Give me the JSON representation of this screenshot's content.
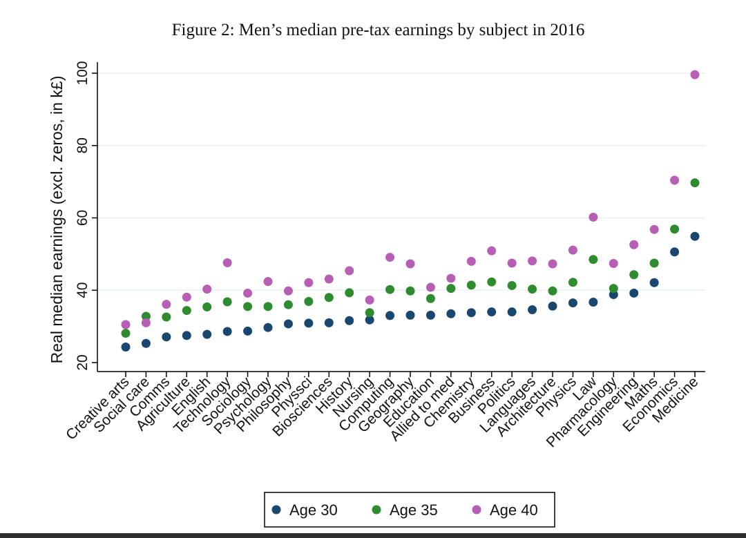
{
  "chart_data": {
    "type": "scatter",
    "title": "Figure 2: Men’s median pre-tax earnings by subject in 2016",
    "xlabel": "",
    "ylabel": "Real median earnings (excl. zeros, in k£)",
    "ylim": [
      20,
      100
    ],
    "yticks": [
      "20",
      "40",
      "60",
      "80",
      "100"
    ],
    "grid": true,
    "legend_position": "bottom",
    "categories": [
      "Creative arts",
      "Social care",
      "Comms",
      "Agriculture",
      "English",
      "Technology",
      "Sociology",
      "Psychology",
      "Philosophy",
      "Physsci",
      "Biosciences",
      "History",
      "Nursing",
      "Computing",
      "Geography",
      "Education",
      "Allied to med",
      "Chemistry",
      "Business",
      "Politics",
      "Languages",
      "Architecture",
      "Physics",
      "Law",
      "Pharmacology",
      "Engineering",
      "Maths",
      "Economics",
      "Medicine"
    ],
    "series": [
      {
        "name": "Age 30",
        "color": "#1a476f",
        "values": [
          24.3,
          25.3,
          27.1,
          27.5,
          27.8,
          28.6,
          28.7,
          29.7,
          30.7,
          30.9,
          31.0,
          31.6,
          31.8,
          33.0,
          33.1,
          33.1,
          33.5,
          33.8,
          34.0,
          34.0,
          34.6,
          35.6,
          36.5,
          36.7,
          38.8,
          39.2,
          42.1,
          50.6,
          54.9
        ]
      },
      {
        "name": "Age 35",
        "color": "#2e8b2e",
        "values": [
          28.1,
          32.8,
          32.6,
          34.4,
          35.4,
          36.8,
          35.5,
          35.5,
          36.0,
          36.9,
          38.0,
          39.3,
          33.8,
          40.2,
          39.8,
          37.7,
          40.5,
          41.4,
          42.3,
          41.3,
          40.3,
          39.8,
          42.2,
          48.5,
          40.5,
          44.3,
          47.5,
          56.9,
          69.7
        ]
      },
      {
        "name": "Age 40",
        "color": "#b65fb4",
        "values": [
          30.5,
          31.0,
          36.1,
          38.1,
          40.3,
          47.6,
          39.2,
          42.4,
          39.8,
          42.1,
          43.1,
          45.4,
          37.3,
          49.1,
          47.3,
          40.8,
          43.3,
          48.0,
          50.9,
          47.5,
          48.1,
          47.3,
          51.1,
          60.2,
          47.4,
          52.6,
          56.8,
          70.4,
          99.6
        ]
      }
    ]
  }
}
